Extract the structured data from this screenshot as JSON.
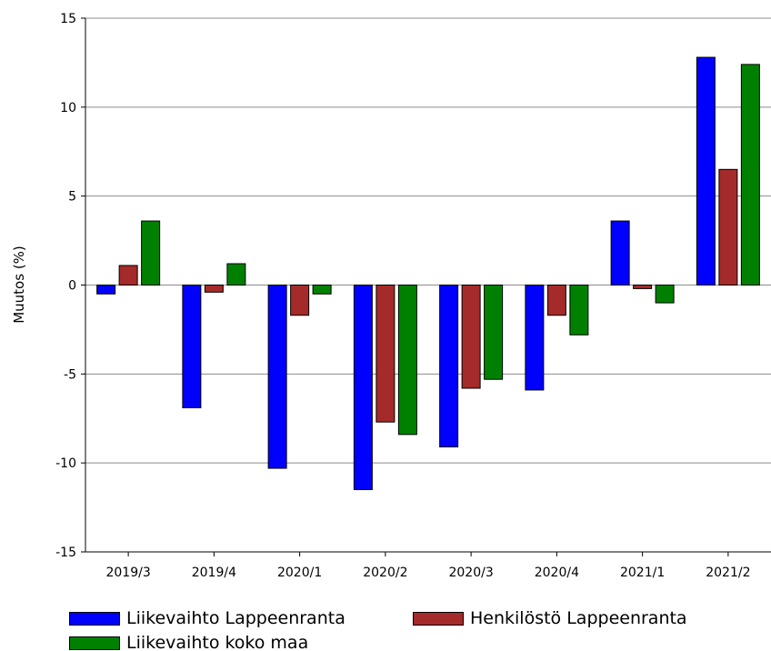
{
  "chart_data": {
    "type": "bar",
    "title": "",
    "xlabel": "",
    "ylabel": "Muutos (%)",
    "ylim": [
      -15,
      15
    ],
    "yticks": [
      -15,
      -10,
      -5,
      0,
      5,
      10,
      15
    ],
    "grid": true,
    "legend_position": "bottom",
    "categories": [
      "2019/3",
      "2019/4",
      "2020/1",
      "2020/2",
      "2020/3",
      "2020/4",
      "2021/1",
      "2021/2"
    ],
    "series": [
      {
        "name": "Liikevaihto Lappeenranta",
        "color": "#0000ff",
        "values": [
          -0.5,
          -6.9,
          -10.3,
          -11.5,
          -9.1,
          -5.9,
          3.6,
          12.8
        ]
      },
      {
        "name": "Henkilöstö Lappeenranta",
        "color": "#a52a2a",
        "values": [
          1.1,
          -0.4,
          -1.7,
          -7.7,
          -5.8,
          -1.7,
          -0.2,
          6.5
        ]
      },
      {
        "name": "Liikevaihto koko maa",
        "color": "#008000",
        "values": [
          3.6,
          1.2,
          -0.5,
          -8.4,
          -5.3,
          -2.8,
          -1.0,
          12.4
        ]
      }
    ]
  }
}
